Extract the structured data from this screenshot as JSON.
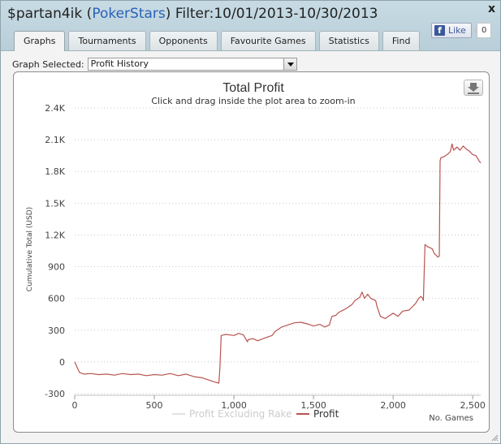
{
  "window": {
    "player": "$partan4ik",
    "site": "PokerStars",
    "filter": "Filter:10/01/2013-10/30/2013",
    "close_label": "x"
  },
  "tabs": [
    {
      "label": "Graphs",
      "active": true
    },
    {
      "label": "Tournaments",
      "active": false
    },
    {
      "label": "Opponents",
      "active": false
    },
    {
      "label": "Favourite Games",
      "active": false
    },
    {
      "label": "Statistics",
      "active": false
    },
    {
      "label": "Find",
      "active": false
    }
  ],
  "facebook": {
    "like_label": "Like",
    "count": "0"
  },
  "graph_selector": {
    "label": "Graph Selected:",
    "value": "Profit History"
  },
  "colors": {
    "profit_line": "#b85450",
    "excl_rake_line": "#e2e2e2",
    "title_bar": "#c1d5de",
    "link_blue": "#2a62b8"
  },
  "chart_data": {
    "type": "line",
    "title": "Total Profit",
    "subtitle": "Click and drag inside the plot area to zoom-in",
    "ylabel": "Cumulative Total (USD)",
    "xlabel": "No. Games",
    "xlim": [
      0,
      2550
    ],
    "ylim": [
      -300,
      2400
    ],
    "xticks": [
      "0",
      "500",
      "1,000",
      "1,500",
      "2,000",
      "2,500"
    ],
    "xtick_values": [
      0,
      500,
      1000,
      1500,
      2000,
      2500
    ],
    "yticks": [
      "-300",
      "0",
      "300",
      "600",
      "900",
      "1.2K",
      "1.5K",
      "1.8K",
      "2.1K",
      "2.4K"
    ],
    "ytick_values": [
      -300,
      0,
      300,
      600,
      900,
      1200,
      1500,
      1800,
      2100,
      2400
    ],
    "grid": "horizontal-dotted",
    "legend_position": "bottom-center",
    "series": [
      {
        "name": "Profit Excluding Rake",
        "color": "#e2e2e2",
        "x": [],
        "y": []
      },
      {
        "name": "Profit",
        "color": "#b85450",
        "x": [
          0,
          15,
          30,
          60,
          100,
          150,
          200,
          250,
          300,
          350,
          400,
          450,
          500,
          550,
          600,
          650,
          700,
          750,
          800,
          850,
          880,
          905,
          912,
          920,
          950,
          1000,
          1030,
          1060,
          1085,
          1090,
          1120,
          1150,
          1200,
          1240,
          1260,
          1300,
          1340,
          1380,
          1420,
          1460,
          1500,
          1540,
          1570,
          1600,
          1615,
          1640,
          1660,
          1700,
          1740,
          1760,
          1790,
          1805,
          1820,
          1840,
          1860,
          1890,
          1900,
          1920,
          1950,
          1980,
          2000,
          2030,
          2060,
          2100,
          2140,
          2160,
          2175,
          2185,
          2190,
          2200,
          2215,
          2230,
          2245,
          2260,
          2270,
          2280,
          2290,
          2295,
          2300,
          2320,
          2340,
          2360,
          2370,
          2380,
          2400,
          2420,
          2440,
          2460,
          2480,
          2500,
          2520,
          2540,
          2550
        ],
        "y": [
          0,
          -50,
          -100,
          -115,
          -110,
          -120,
          -115,
          -125,
          -110,
          -120,
          -115,
          -130,
          -120,
          -125,
          -110,
          -130,
          -115,
          -140,
          -150,
          -175,
          -190,
          -200,
          -60,
          250,
          260,
          250,
          270,
          255,
          190,
          210,
          220,
          200,
          230,
          250,
          290,
          330,
          350,
          370,
          375,
          360,
          340,
          355,
          330,
          350,
          430,
          440,
          470,
          500,
          540,
          580,
          610,
          660,
          600,
          640,
          600,
          580,
          520,
          430,
          410,
          440,
          460,
          430,
          480,
          490,
          550,
          600,
          620,
          600,
          580,
          1110,
          1090,
          1080,
          1070,
          1020,
          1010,
          990,
          1000,
          1900,
          1930,
          1940,
          1960,
          1990,
          2060,
          2000,
          2030,
          2000,
          2040,
          2010,
          1990,
          1960,
          1950,
          1900,
          1880
        ]
      }
    ]
  }
}
